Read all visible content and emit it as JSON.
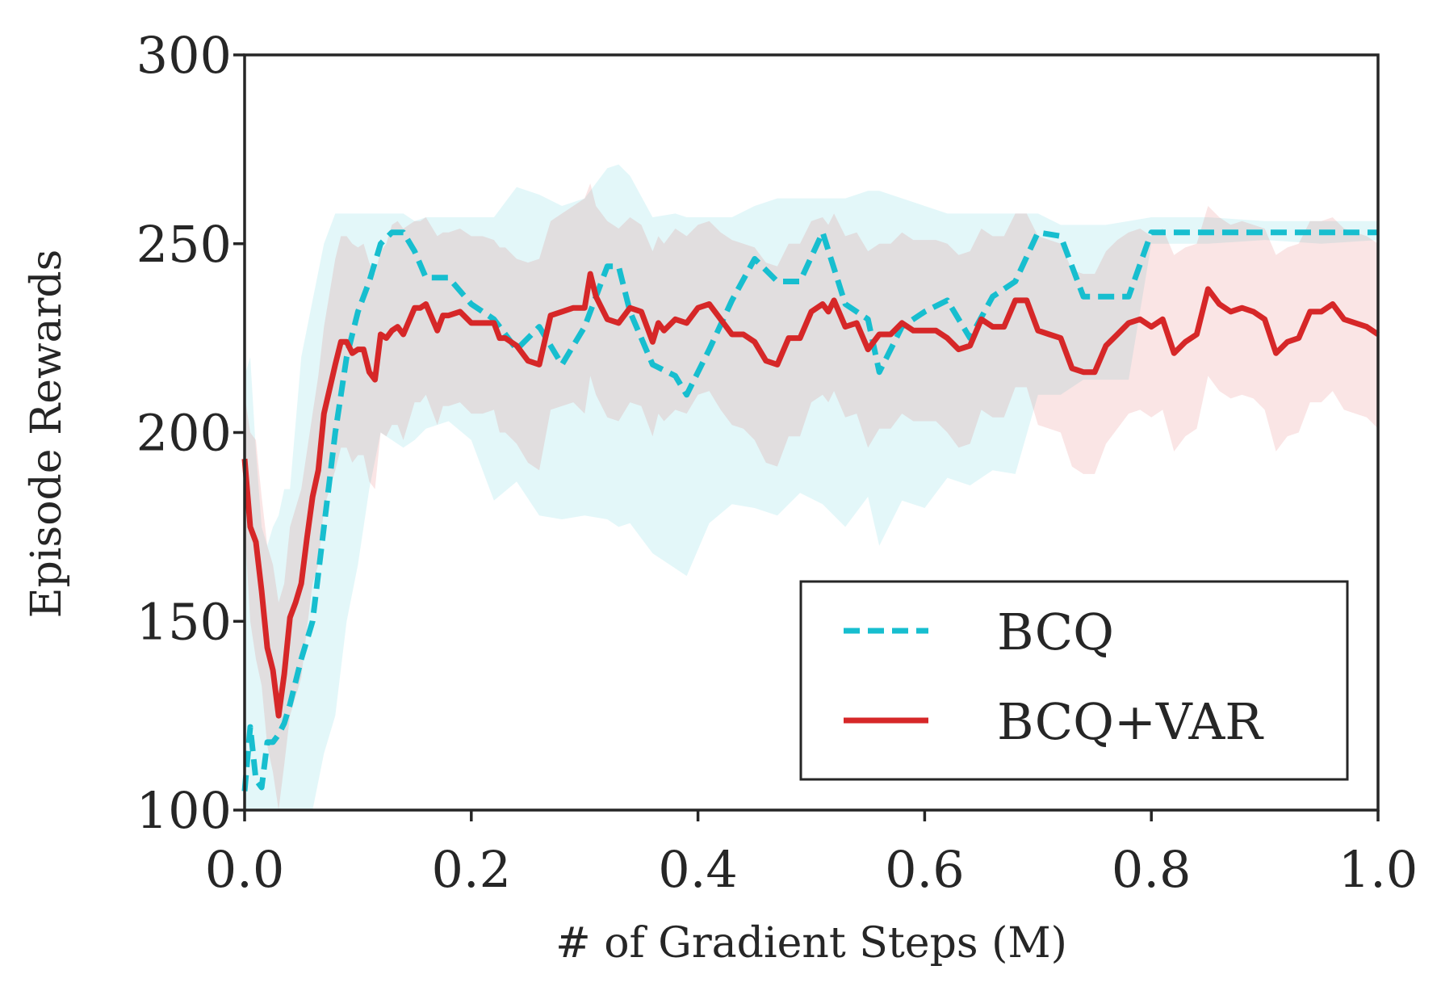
{
  "chart_data": {
    "type": "line",
    "title": "",
    "xlabel": "# of Gradient Steps (M)",
    "ylabel": "Episode Rewards",
    "xlim": [
      0.0,
      1.0
    ],
    "ylim": [
      100,
      300
    ],
    "grid": false,
    "legend_position": "bottom-right",
    "x_ticks": [
      0.0,
      0.2,
      0.4,
      0.6,
      0.8,
      1.0
    ],
    "x_tick_labels": [
      "0.0",
      "0.2",
      "0.4",
      "0.6",
      "0.8",
      "1.0"
    ],
    "y_ticks": [
      100,
      150,
      200,
      250,
      300
    ],
    "y_tick_labels": [
      "100",
      "150",
      "200",
      "250",
      "300"
    ],
    "series": [
      {
        "name": "BCQ",
        "color": "#17becf",
        "line_style": "dashed",
        "x": [
          0.0,
          0.005,
          0.01,
          0.015,
          0.02,
          0.025,
          0.03,
          0.035,
          0.04,
          0.05,
          0.06,
          0.07,
          0.08,
          0.09,
          0.1,
          0.11,
          0.12,
          0.13,
          0.14,
          0.15,
          0.16,
          0.18,
          0.2,
          0.22,
          0.24,
          0.26,
          0.28,
          0.3,
          0.32,
          0.33,
          0.34,
          0.36,
          0.38,
          0.39,
          0.41,
          0.43,
          0.45,
          0.47,
          0.49,
          0.51,
          0.53,
          0.55,
          0.56,
          0.58,
          0.6,
          0.62,
          0.64,
          0.66,
          0.68,
          0.7,
          0.72,
          0.74,
          0.76,
          0.78,
          0.8,
          0.85,
          0.9,
          0.95,
          1.0
        ],
        "values": [
          105,
          122,
          108,
          106,
          118,
          118,
          120,
          123,
          128,
          140,
          150,
          175,
          200,
          220,
          232,
          240,
          250,
          253,
          253,
          248,
          241,
          241,
          234,
          230,
          222,
          228,
          218,
          228,
          244,
          244,
          232,
          218,
          215,
          210,
          222,
          235,
          246,
          240,
          240,
          253,
          234,
          230,
          216,
          228,
          232,
          235,
          225,
          236,
          240,
          253,
          252,
          236,
          236,
          236,
          253,
          253,
          253,
          253,
          253
        ],
        "band_upper": [
          215,
          220,
          195,
          175,
          170,
          175,
          178,
          185,
          185,
          220,
          235,
          250,
          258,
          258,
          258,
          258,
          258,
          258,
          258,
          256,
          257,
          257,
          257,
          257,
          265,
          263,
          260,
          262,
          270,
          271,
          268,
          257,
          258,
          257,
          257,
          257,
          260,
          262,
          262,
          262,
          262,
          264,
          264,
          262,
          260,
          258,
          258,
          258,
          258,
          258,
          255,
          255,
          255,
          256,
          257,
          257,
          256,
          256,
          256
        ],
        "band_lower": [
          100,
          100,
          100,
          100,
          100,
          100,
          100,
          100,
          100,
          100,
          100,
          115,
          125,
          150,
          165,
          185,
          200,
          198,
          196,
          198,
          201,
          203,
          198,
          182,
          187,
          178,
          177,
          178,
          177,
          175,
          176,
          168,
          164,
          162,
          176,
          181,
          180,
          178,
          184,
          181,
          175,
          183,
          170,
          182,
          180,
          188,
          186,
          190,
          189,
          210,
          210,
          214,
          214,
          214,
          250,
          250,
          251,
          250,
          251
        ]
      },
      {
        "name": "BCQ+VAR",
        "color": "#d62728",
        "line_style": "solid",
        "x": [
          0.0,
          0.005,
          0.01,
          0.015,
          0.02,
          0.025,
          0.03,
          0.035,
          0.04,
          0.045,
          0.05,
          0.055,
          0.06,
          0.065,
          0.07,
          0.08,
          0.085,
          0.09,
          0.095,
          0.1,
          0.105,
          0.11,
          0.115,
          0.12,
          0.125,
          0.13,
          0.135,
          0.14,
          0.15,
          0.155,
          0.16,
          0.17,
          0.175,
          0.18,
          0.19,
          0.2,
          0.205,
          0.21,
          0.22,
          0.225,
          0.23,
          0.24,
          0.25,
          0.26,
          0.27,
          0.28,
          0.29,
          0.3,
          0.305,
          0.31,
          0.32,
          0.33,
          0.34,
          0.35,
          0.36,
          0.365,
          0.37,
          0.38,
          0.39,
          0.4,
          0.41,
          0.42,
          0.43,
          0.44,
          0.45,
          0.46,
          0.47,
          0.48,
          0.49,
          0.5,
          0.51,
          0.515,
          0.52,
          0.53,
          0.54,
          0.55,
          0.56,
          0.57,
          0.58,
          0.59,
          0.6,
          0.61,
          0.62,
          0.63,
          0.64,
          0.65,
          0.66,
          0.67,
          0.68,
          0.69,
          0.7,
          0.71,
          0.72,
          0.73,
          0.74,
          0.75,
          0.76,
          0.77,
          0.78,
          0.79,
          0.8,
          0.81,
          0.82,
          0.83,
          0.84,
          0.85,
          0.86,
          0.87,
          0.88,
          0.89,
          0.9,
          0.91,
          0.92,
          0.93,
          0.94,
          0.95,
          0.96,
          0.97,
          0.98,
          0.99,
          1.0
        ],
        "values": [
          193,
          175,
          171,
          158,
          143,
          137,
          125,
          136,
          151,
          155,
          160,
          172,
          183,
          190,
          205,
          218,
          224,
          224,
          221,
          222,
          222,
          216,
          214,
          226,
          225,
          227,
          228,
          226,
          233,
          233,
          234,
          227,
          231,
          231,
          232,
          229,
          229,
          229,
          229,
          225,
          225,
          223,
          219,
          218,
          231,
          232,
          233,
          233,
          242,
          236,
          230,
          229,
          233,
          232,
          224,
          229,
          227,
          230,
          229,
          233,
          234,
          230,
          226,
          226,
          224,
          219,
          218,
          225,
          225,
          232,
          234,
          232,
          235,
          228,
          229,
          222,
          226,
          226,
          229,
          227,
          227,
          227,
          225,
          222,
          223,
          230,
          228,
          228,
          235,
          235,
          227,
          226,
          225,
          217,
          216,
          216,
          223,
          226,
          229,
          230,
          228,
          230,
          221,
          224,
          226,
          238,
          234,
          232,
          233,
          232,
          230,
          221,
          224,
          225,
          232,
          232,
          234,
          230,
          229,
          228,
          226
        ],
        "band_upper": [
          210,
          200,
          198,
          183,
          170,
          165,
          155,
          160,
          175,
          180,
          185,
          195,
          205,
          215,
          228,
          246,
          252,
          252,
          250,
          249,
          250,
          245,
          242,
          248,
          250,
          255,
          256,
          254,
          256,
          256,
          257,
          252,
          253,
          253,
          254,
          252,
          252,
          252,
          251,
          249,
          249,
          246,
          245,
          246,
          256,
          258,
          260,
          262,
          266,
          260,
          256,
          254,
          257,
          255,
          248,
          252,
          250,
          254,
          252,
          255,
          256,
          253,
          251,
          250,
          249,
          245,
          244,
          250,
          250,
          256,
          257,
          255,
          258,
          252,
          253,
          248,
          250,
          250,
          253,
          251,
          251,
          251,
          250,
          247,
          248,
          254,
          252,
          252,
          258,
          258,
          252,
          251,
          250,
          243,
          242,
          242,
          248,
          251,
          253,
          254,
          252,
          254,
          247,
          249,
          250,
          260,
          257,
          255,
          256,
          255,
          254,
          247,
          249,
          250,
          256,
          256,
          257,
          254,
          253,
          252,
          250
        ],
        "band_lower": [
          175,
          150,
          140,
          133,
          117,
          110,
          100,
          112,
          125,
          130,
          135,
          148,
          160,
          165,
          180,
          190,
          196,
          196,
          192,
          194,
          194,
          187,
          185,
          200,
          199,
          202,
          202,
          198,
          208,
          208,
          210,
          202,
          207,
          207,
          208,
          205,
          205,
          205,
          206,
          200,
          200,
          197,
          192,
          190,
          206,
          207,
          208,
          205,
          215,
          210,
          204,
          203,
          208,
          207,
          199,
          205,
          203,
          206,
          205,
          210,
          211,
          206,
          202,
          201,
          198,
          192,
          191,
          199,
          199,
          208,
          210,
          208,
          211,
          204,
          205,
          196,
          201,
          201,
          205,
          203,
          203,
          203,
          200,
          196,
          197,
          206,
          204,
          204,
          212,
          212,
          202,
          201,
          200,
          191,
          189,
          189,
          197,
          201,
          205,
          206,
          204,
          206,
          195,
          199,
          201,
          215,
          211,
          209,
          210,
          209,
          206,
          195,
          199,
          200,
          208,
          208,
          211,
          206,
          205,
          204,
          201
        ]
      }
    ]
  }
}
